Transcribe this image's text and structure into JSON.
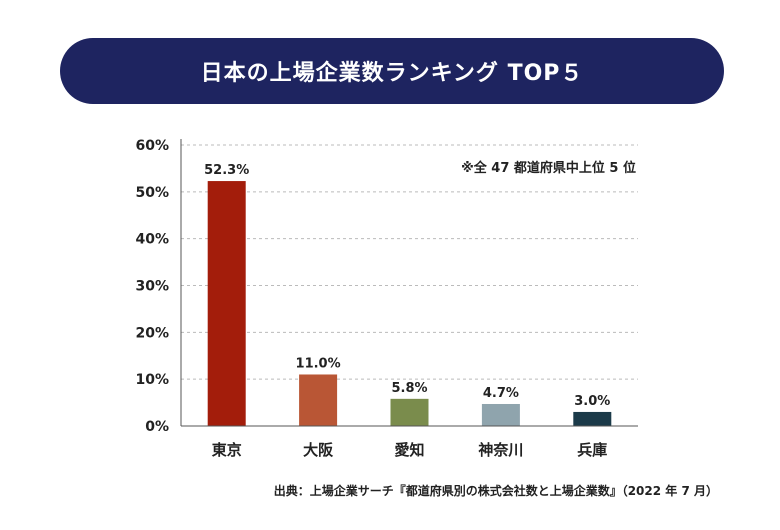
{
  "title": "日本の上場企業数ランキング TOP５",
  "source": "出典：上場企業サーチ『都道府県別の株式会社数と上場企業数』（2022 年 7 月）",
  "note": "※全 47 都道府県中上位 5 位",
  "chart_data": {
    "type": "bar",
    "categories": [
      "東京",
      "大阪",
      "愛知",
      "神奈川",
      "兵庫"
    ],
    "values": [
      52.3,
      11.0,
      5.8,
      4.7,
      3.0
    ],
    "value_labels": [
      "52.3%",
      "11.0%",
      "5.8%",
      "4.7%",
      "3.0%"
    ],
    "colors": [
      "#a31d0b",
      "#b95635",
      "#7a8c4c",
      "#8fa4ad",
      "#1b3a49"
    ],
    "ylim": [
      0,
      60
    ],
    "yticks": [
      0,
      10,
      20,
      30,
      40,
      50,
      60
    ],
    "ytick_labels": [
      "0%",
      "10%",
      "20%",
      "30%",
      "40%",
      "50%",
      "60%"
    ],
    "grid": true,
    "grid_color": "#bbbbbb",
    "legend": "none"
  }
}
